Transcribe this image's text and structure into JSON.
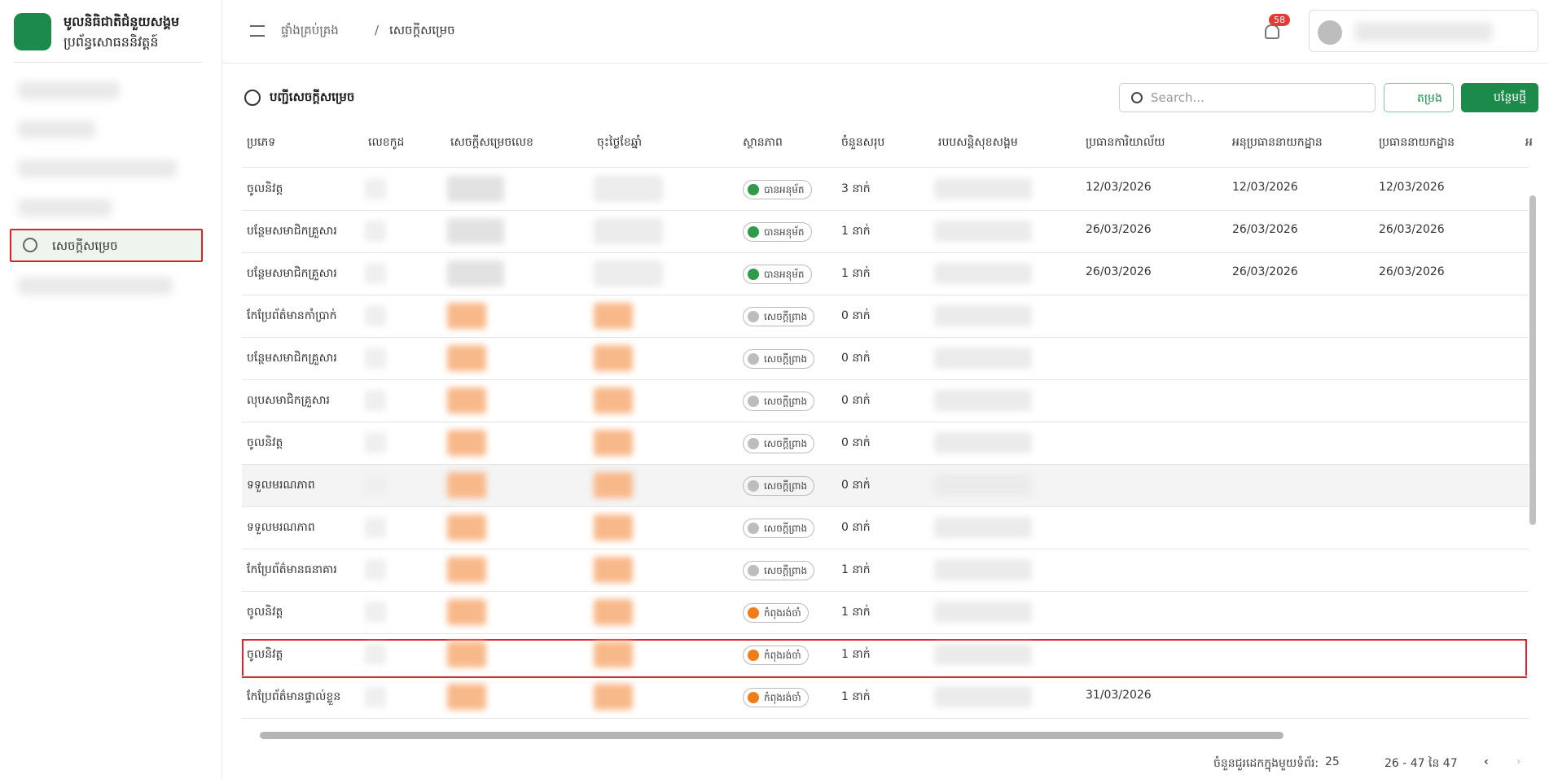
{
  "sidebar": {
    "title": "មូលនិធិជាតិជំនួយសង្គម",
    "subtitle": "ប្រព័ន្ធសោធននិវត្តន៍",
    "active_item": "សេចក្តីសម្រេច"
  },
  "header": {
    "breadcrumb": [
      "ផ្ទាំងគ្រប់គ្រង",
      "សេចក្តីសម្រេច"
    ],
    "notifications": "58"
  },
  "section": {
    "title": "បញ្ជីសេចក្តីសម្រេច",
    "search_placeholder": "Search...",
    "filter_button": "តម្រង",
    "add_button": "បន្ថែមថ្មី"
  },
  "table": {
    "columns": [
      "ប្រភេទ",
      "លេខកូដ",
      "សេចក្តីសម្រេចលេខ",
      "ចុះថ្ងៃខែឆ្នាំ",
      "ស្ថានភាព",
      "ចំនួនសរុប",
      "របបសន្តិសុខសង្គម",
      "ប្រធានការិយាល័យ",
      "អនុប្រធាននាយកដ្ឋាន",
      "ប្រធាននាយកដ្ឋាន",
      "អ"
    ],
    "rows": [
      {
        "type": "ចូលនិវត្ត",
        "status": "បានអនុម័ត",
        "status_color": "#2e9a4a",
        "count": "3 នាក់",
        "dates": [
          "12/03/2026",
          "12/03/2026",
          "12/03/2026"
        ]
      },
      {
        "type": "បន្ថែមសមាជិកគ្រួសារ",
        "status": "បានអនុម័ត",
        "status_color": "#2e9a4a",
        "count": "1 នាក់",
        "dates": [
          "26/03/2026",
          "26/03/2026",
          "26/03/2026"
        ]
      },
      {
        "type": "បន្ថែមសមាជិកគ្រួសារ",
        "status": "បានអនុម័ត",
        "status_color": "#2e9a4a",
        "count": "1 នាក់",
        "dates": [
          "26/03/2026",
          "26/03/2026",
          "26/03/2026"
        ]
      },
      {
        "type": "កែប្រែព័ត៌មានកាំប្រាក់",
        "status": "សេចក្តីព្រាង",
        "status_color": "#bdbdbd",
        "count": "0 នាក់",
        "dates": []
      },
      {
        "type": "បន្ថែមសមាជិកគ្រួសារ",
        "status": "សេចក្តីព្រាង",
        "status_color": "#bdbdbd",
        "count": "0 នាក់",
        "dates": []
      },
      {
        "type": "លុបសមាជិកគ្រួសារ",
        "status": "សេចក្តីព្រាង",
        "status_color": "#bdbdbd",
        "count": "0 នាក់",
        "dates": []
      },
      {
        "type": "ចូលនិវត្ត",
        "status": "សេចក្តីព្រាង",
        "status_color": "#bdbdbd",
        "count": "0 នាក់",
        "dates": []
      },
      {
        "type": "ទទួលមរណភាព",
        "status": "សេចក្តីព្រាង",
        "status_color": "#bdbdbd",
        "count": "0 នាក់",
        "dates": []
      },
      {
        "type": "ទទួលមរណភាព",
        "status": "សេចក្តីព្រាង",
        "status_color": "#bdbdbd",
        "count": "0 នាក់",
        "dates": []
      },
      {
        "type": "កែប្រែព័ត៌មានធនាគារ",
        "status": "សេចក្តីព្រាង",
        "status_color": "#bdbdbd",
        "count": "1 នាក់",
        "dates": []
      },
      {
        "type": "ចូលនិវត្ត",
        "status": "កំពុងរង់ចាំ",
        "status_color": "#ef7d1a",
        "count": "1 នាក់",
        "dates": []
      },
      {
        "type": "ចូលនិវត្ត",
        "status": "កំពុងរង់ចាំ",
        "status_color": "#ef7d1a",
        "count": "1 នាក់",
        "dates": []
      },
      {
        "type": "កែប្រែព័ត៌មានផ្ទាល់ខ្លួន",
        "status": "កំពុងរង់ចាំ",
        "status_color": "#ef7d1a",
        "count": "1 នាក់",
        "dates": [
          "31/03/2026"
        ]
      }
    ]
  },
  "pagination": {
    "rows_per_page_label": "ចំនួនជួរដេកក្នុងមួយទំព័រ:",
    "rows_per_page": "25",
    "range": "26 - 47 នៃ 47"
  }
}
